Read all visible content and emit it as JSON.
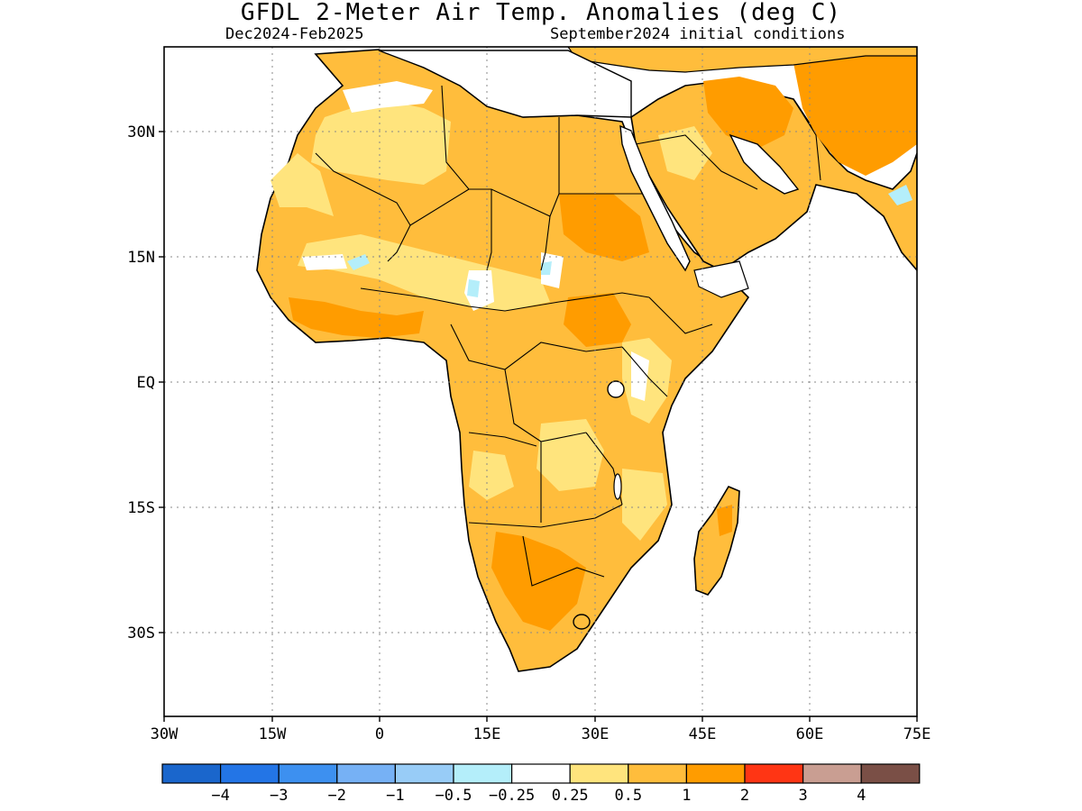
{
  "title": "GFDL 2-Meter Air Temp. Anomalies (deg C)",
  "subtitle_left": "Dec2024-Feb2025",
  "subtitle_right": "September2024 initial conditions",
  "lat_ticks": [
    "30N",
    "15N",
    "EQ",
    "15S",
    "30S"
  ],
  "lon_ticks": [
    "30W",
    "15W",
    "0",
    "15E",
    "30E",
    "45E",
    "60E",
    "75E"
  ],
  "colorbar": {
    "colors": [
      "#1a66cc",
      "#2375e6",
      "#3d90f0",
      "#76b1f5",
      "#98ccf7",
      "#b4eefa",
      "#ffffff",
      "#ffe47d",
      "#ffbd3c",
      "#ff9c00",
      "#ff3514",
      "#c99e92",
      "#7a4f46"
    ],
    "labels": [
      "-4",
      "-3",
      "-2",
      "-1",
      "-0.5",
      "-0.25",
      "0.25",
      "0.5",
      "1",
      "2",
      "3",
      "4"
    ]
  },
  "palette": {
    "light_yellow": "#ffe47d",
    "light_orange": "#ffbd3c",
    "orange": "#ff9c00",
    "light_blue": "#b4eefa",
    "white": "#ffffff",
    "outline": "#000000"
  }
}
